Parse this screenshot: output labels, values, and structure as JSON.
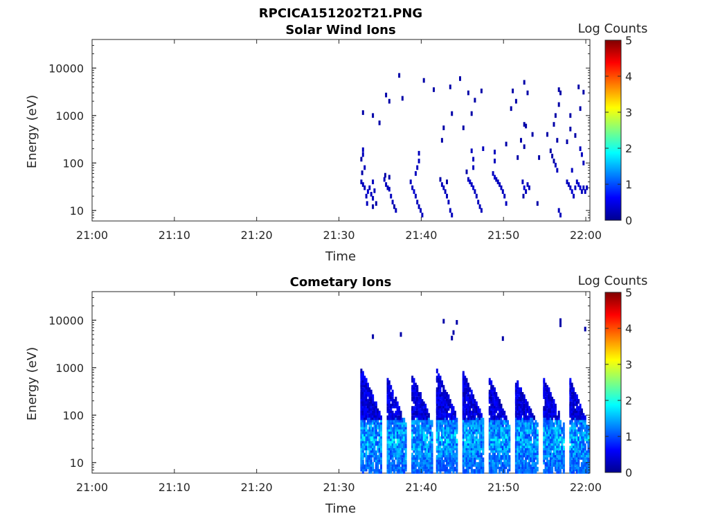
{
  "figure": {
    "filename_title": "RPCICA151202T21.PNG"
  },
  "chart_data": [
    {
      "type": "heatmap",
      "title": "Solar Wind Ions",
      "xlabel": "Time",
      "ylabel": "Energy (eV)",
      "x_ticks": [
        "21:00",
        "21:10",
        "21:20",
        "21:30",
        "21:40",
        "21:50",
        "22:00"
      ],
      "y_ticks": [
        "10",
        "100",
        "1000",
        "10000"
      ],
      "y_scale": "log",
      "ylim": [
        6,
        40000
      ],
      "xlim_minutes": [
        0,
        60.5
      ],
      "colorbar": {
        "label": "Log Counts",
        "range": [
          0,
          5
        ],
        "ticks": [
          "0",
          "1",
          "2",
          "3",
          "4",
          "5"
        ],
        "colormap": "jet"
      },
      "cells": [
        [
          32.6,
          40,
          0.3
        ],
        [
          32.8,
          35,
          0.3
        ],
        [
          33.0,
          30,
          0.3
        ],
        [
          33.2,
          20,
          0.3
        ],
        [
          33.4,
          25,
          0.4
        ],
        [
          33.6,
          30,
          0.3
        ],
        [
          33.8,
          22,
          0.3
        ],
        [
          34.0,
          18,
          0.3
        ],
        [
          34.2,
          26,
          0.3
        ],
        [
          34.4,
          14,
          0.2
        ],
        [
          32.8,
          190,
          0.3
        ],
        [
          32.8,
          150,
          0.3
        ],
        [
          32.6,
          120,
          0.2
        ],
        [
          33.0,
          80,
          0.3
        ],
        [
          32.7,
          62,
          0.2
        ],
        [
          34.0,
          40,
          0.3
        ],
        [
          34.0,
          12,
          0.2
        ],
        [
          33.3,
          14,
          0.3
        ],
        [
          35.4,
          45,
          0.3
        ],
        [
          35.6,
          35,
          0.3
        ],
        [
          35.8,
          30,
          0.3
        ],
        [
          36.0,
          28,
          0.3
        ],
        [
          36.2,
          20,
          0.3
        ],
        [
          36.4,
          15,
          0.3
        ],
        [
          36.6,
          12,
          0.2
        ],
        [
          36.8,
          10,
          0.3
        ],
        [
          36.0,
          50,
          0.2
        ],
        [
          35.5,
          55,
          0.2
        ],
        [
          38.6,
          40,
          0.3
        ],
        [
          38.8,
          30,
          0.3
        ],
        [
          39.0,
          25,
          0.4
        ],
        [
          39.2,
          20,
          0.3
        ],
        [
          39.4,
          15,
          0.3
        ],
        [
          39.6,
          12,
          0.3
        ],
        [
          39.8,
          10,
          0.3
        ],
        [
          40.0,
          8,
          0.3
        ],
        [
          39.6,
          160,
          0.3
        ],
        [
          39.6,
          110,
          0.3
        ],
        [
          39.4,
          80,
          0.3
        ],
        [
          39.2,
          60,
          0.3
        ],
        [
          42.4,
          35,
          0.3
        ],
        [
          42.6,
          30,
          0.3
        ],
        [
          42.8,
          25,
          0.3
        ],
        [
          43.0,
          20,
          0.3
        ],
        [
          43.2,
          15,
          0.3
        ],
        [
          43.4,
          10,
          0.3
        ],
        [
          43.6,
          8,
          0.3
        ],
        [
          43.0,
          40,
          0.2
        ],
        [
          42.2,
          45,
          0.2
        ],
        [
          45.6,
          45,
          0.3
        ],
        [
          45.8,
          40,
          0.4
        ],
        [
          46.0,
          35,
          0.3
        ],
        [
          46.2,
          30,
          0.4
        ],
        [
          46.4,
          25,
          0.3
        ],
        [
          46.6,
          20,
          0.3
        ],
        [
          46.8,
          15,
          0.3
        ],
        [
          47.0,
          12,
          0.3
        ],
        [
          47.2,
          10,
          0.3
        ],
        [
          46.0,
          180,
          0.3
        ],
        [
          46.2,
          120,
          0.3
        ],
        [
          46.2,
          80,
          0.3
        ],
        [
          47.4,
          200,
          0.3
        ],
        [
          45.4,
          65,
          0.2
        ],
        [
          48.6,
          60,
          0.3
        ],
        [
          48.8,
          50,
          0.4
        ],
        [
          49.0,
          45,
          0.3
        ],
        [
          49.2,
          40,
          0.3
        ],
        [
          49.4,
          35,
          0.3
        ],
        [
          49.6,
          30,
          0.3
        ],
        [
          49.8,
          25,
          0.3
        ],
        [
          50.0,
          20,
          0.3
        ],
        [
          50.2,
          14,
          0.3
        ],
        [
          48.8,
          170,
          0.3
        ],
        [
          48.8,
          110,
          0.3
        ],
        [
          50.2,
          250,
          0.2
        ],
        [
          52.2,
          40,
          0.3
        ],
        [
          52.4,
          30,
          0.4
        ],
        [
          52.6,
          25,
          0.3
        ],
        [
          52.8,
          35,
          0.3
        ],
        [
          53.0,
          30,
          0.3
        ],
        [
          52.3,
          20,
          0.2
        ],
        [
          54.0,
          14,
          0.2
        ],
        [
          52.4,
          220,
          0.2
        ],
        [
          52.0,
          300,
          0.2
        ],
        [
          55.6,
          180,
          0.2
        ],
        [
          55.8,
          140,
          0.2
        ],
        [
          56.0,
          110,
          0.2
        ],
        [
          56.2,
          90,
          0.3
        ],
        [
          56.4,
          70,
          0.3
        ],
        [
          56.6,
          10,
          0.3
        ],
        [
          56.8,
          8,
          0.3
        ],
        [
          57.6,
          40,
          0.3
        ],
        [
          57.8,
          35,
          0.3
        ],
        [
          58.0,
          30,
          0.3
        ],
        [
          58.2,
          25,
          0.4
        ],
        [
          58.4,
          20,
          0.3
        ],
        [
          58.6,
          30,
          0.3
        ],
        [
          58.8,
          40,
          0.3
        ],
        [
          59.0,
          35,
          0.4
        ],
        [
          59.2,
          30,
          0.4
        ],
        [
          59.4,
          25,
          0.3
        ],
        [
          59.6,
          30,
          0.3
        ],
        [
          59.8,
          25,
          0.3
        ],
        [
          60.0,
          30,
          0.3
        ],
        [
          58.2,
          70,
          0.3
        ],
        [
          59.2,
          200,
          0.3
        ],
        [
          59.4,
          150,
          0.3
        ],
        [
          59.6,
          100,
          0.3
        ],
        [
          58.0,
          520,
          0.2
        ],
        [
          57.6,
          280,
          0.2
        ],
        [
          58.6,
          380,
          0.2
        ],
        [
          37.2,
          7000,
          0.2
        ],
        [
          40.2,
          5500,
          0.2
        ],
        [
          44.6,
          6000,
          0.2
        ],
        [
          43.4,
          4000,
          0.2
        ],
        [
          41.4,
          3500,
          0.2
        ],
        [
          37.6,
          2300,
          0.2
        ],
        [
          35.6,
          2700,
          0.2
        ],
        [
          36.0,
          2000,
          0.2
        ],
        [
          32.8,
          1150,
          0.2
        ],
        [
          34.0,
          1000,
          0.2
        ],
        [
          34.8,
          700,
          0.2
        ],
        [
          43.6,
          1100,
          0.2
        ],
        [
          45.6,
          3000,
          0.2
        ],
        [
          47.2,
          3300,
          0.2
        ],
        [
          46.4,
          2100,
          0.2
        ],
        [
          46.0,
          1100,
          0.2
        ],
        [
          45.0,
          550,
          0.2
        ],
        [
          42.6,
          550,
          0.2
        ],
        [
          42.4,
          300,
          0.2
        ],
        [
          52.4,
          5000,
          0.2
        ],
        [
          52.8,
          3000,
          0.2
        ],
        [
          51.0,
          3300,
          0.2
        ],
        [
          51.4,
          2000,
          0.2
        ],
        [
          50.8,
          1400,
          0.2
        ],
        [
          52.4,
          650,
          0.2
        ],
        [
          52.6,
          600,
          0.2
        ],
        [
          53.4,
          400,
          0.2
        ],
        [
          56.6,
          3500,
          0.2
        ],
        [
          56.8,
          3000,
          0.2
        ],
        [
          56.6,
          1700,
          0.2
        ],
        [
          56.2,
          1000,
          0.2
        ],
        [
          56.0,
          650,
          0.2
        ],
        [
          59.0,
          4000,
          0.2
        ],
        [
          59.6,
          3100,
          0.2
        ],
        [
          59.2,
          1400,
          0.2
        ],
        [
          55.2,
          400,
          0.2
        ],
        [
          54.2,
          130,
          0.2
        ],
        [
          51.6,
          130,
          0.2
        ],
        [
          56.4,
          300,
          0.2
        ],
        [
          58.0,
          1000,
          0.2
        ]
      ]
    },
    {
      "type": "heatmap",
      "title": "Cometary Ions",
      "xlabel": "Time",
      "ylabel": "Energy (eV)",
      "x_ticks": [
        "21:00",
        "21:10",
        "21:20",
        "21:30",
        "21:40",
        "21:50",
        "22:00"
      ],
      "y_ticks": [
        "10",
        "100",
        "1000",
        "10000"
      ],
      "y_scale": "log",
      "ylim": [
        6,
        40000
      ],
      "xlim_minutes": [
        0,
        60.5
      ],
      "colorbar": {
        "label": "Log Counts",
        "range": [
          0,
          5
        ],
        "ticks": [
          "0",
          "1",
          "2",
          "3",
          "4",
          "5"
        ],
        "colormap": "jet"
      },
      "bursts": [
        {
          "start": 32.6,
          "width": 2.6,
          "top": 950
        },
        {
          "start": 35.8,
          "width": 2.4,
          "top": 600
        },
        {
          "start": 38.8,
          "width": 2.6,
          "top": 700
        },
        {
          "start": 41.8,
          "width": 2.6,
          "top": 900
        },
        {
          "start": 45.0,
          "width": 2.6,
          "top": 800
        },
        {
          "start": 48.2,
          "width": 2.6,
          "top": 600
        },
        {
          "start": 51.4,
          "width": 2.8,
          "top": 600
        },
        {
          "start": 54.8,
          "width": 2.6,
          "top": 600
        },
        {
          "start": 58.0,
          "width": 2.4,
          "top": 550
        }
      ],
      "cells": [
        [
          34.0,
          4500,
          0.2
        ],
        [
          37.4,
          5000,
          0.2
        ],
        [
          42.6,
          9500,
          0.2
        ],
        [
          43.8,
          5500,
          0.2
        ],
        [
          43.6,
          4200,
          0.2
        ],
        [
          44.2,
          9000,
          0.2
        ],
        [
          49.8,
          4100,
          0.2
        ],
        [
          56.8,
          9800,
          0.2
        ],
        [
          56.8,
          8000,
          0.2
        ],
        [
          59.8,
          6500,
          0.2
        ]
      ]
    }
  ]
}
